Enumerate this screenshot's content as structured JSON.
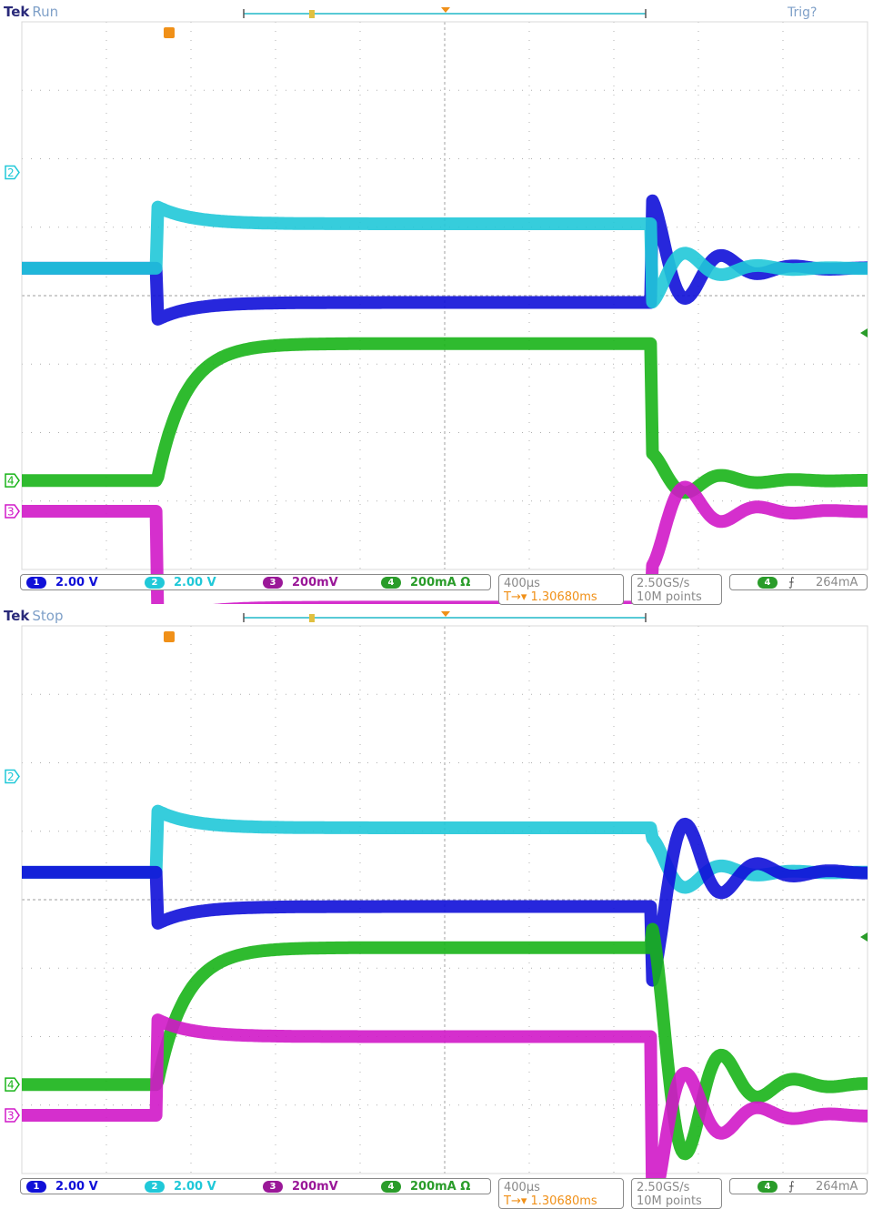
{
  "screens": [
    {
      "brand": "Tek",
      "state": "Run",
      "trig_status": "Trig?",
      "channels": [
        {
          "num": "1",
          "scale": "2.00 V",
          "color": "#1010d8"
        },
        {
          "num": "2",
          "scale": "2.00 V",
          "color": "#20c8d8"
        },
        {
          "num": "3",
          "scale": "200mV",
          "color": "#d018c8"
        },
        {
          "num": "4",
          "scale": "200mA Ω",
          "color": "#18b418"
        }
      ],
      "timebase": {
        "scale": "400µs",
        "delay": "1.30680ms",
        "delay_prefix": "T→▾"
      },
      "sampling": {
        "rate": "2.50GS/s",
        "points": "10M points"
      },
      "trigger": {
        "channel": "4",
        "slope_icon": "rising-edge-icon",
        "slope_glyph": "⨍",
        "level": "264mA"
      }
    },
    {
      "brand": "Tek",
      "state": "Stop",
      "trig_status": "",
      "channels": [
        {
          "num": "1",
          "scale": "2.00 V",
          "color": "#1010d8"
        },
        {
          "num": "2",
          "scale": "2.00 V",
          "color": "#20c8d8"
        },
        {
          "num": "3",
          "scale": "200mV",
          "color": "#d018c8"
        },
        {
          "num": "4",
          "scale": "200mA Ω",
          "color": "#18b418"
        }
      ],
      "timebase": {
        "scale": "400µs",
        "delay": "1.30680ms",
        "delay_prefix": "T→▾"
      },
      "sampling": {
        "rate": "2.50GS/s",
        "points": "10M points"
      },
      "trigger": {
        "channel": "4",
        "slope_icon": "rising-edge-icon",
        "slope_glyph": "⨍",
        "level": "264mA"
      }
    }
  ],
  "chart_data": [
    {
      "type": "line",
      "xlabel": "",
      "ylabel": "",
      "x_divisions": 10,
      "y_divisions": 8,
      "grid": true,
      "traces": [
        {
          "channel": "1",
          "y_before": 4.4,
          "y_during": 3.9,
          "y_after": 4.4,
          "overshoot": 1.0
        },
        {
          "channel": "2",
          "y_before": 4.4,
          "y_during": 5.05,
          "y_after": 4.4,
          "overshoot": 0.5
        },
        {
          "channel": "4",
          "y_before": 1.3,
          "y_during": 3.3,
          "y_after": 1.3,
          "overshoot": 0.4
        },
        {
          "channel": "3",
          "y_before": 0.85,
          "y_during": -0.55,
          "y_after": 0.85,
          "overshoot": 0.8
        }
      ]
    },
    {
      "type": "line",
      "xlabel": "",
      "ylabel": "",
      "x_divisions": 10,
      "y_divisions": 8,
      "grid": true,
      "traces": [
        {
          "channel": "2",
          "y_before": 4.4,
          "y_during": 5.05,
          "y_after": 4.4,
          "overshoot": 0.5
        },
        {
          "channel": "1",
          "y_before": 4.4,
          "y_during": 3.9,
          "y_after": 4.4,
          "overshoot": 1.6
        },
        {
          "channel": "4",
          "y_before": 1.3,
          "y_during": 3.3,
          "y_after": 1.3,
          "overshoot": 2.3
        },
        {
          "channel": "3",
          "y_before": 0.85,
          "y_during": 2.0,
          "y_after": 0.85,
          "overshoot": 1.4
        }
      ]
    }
  ]
}
